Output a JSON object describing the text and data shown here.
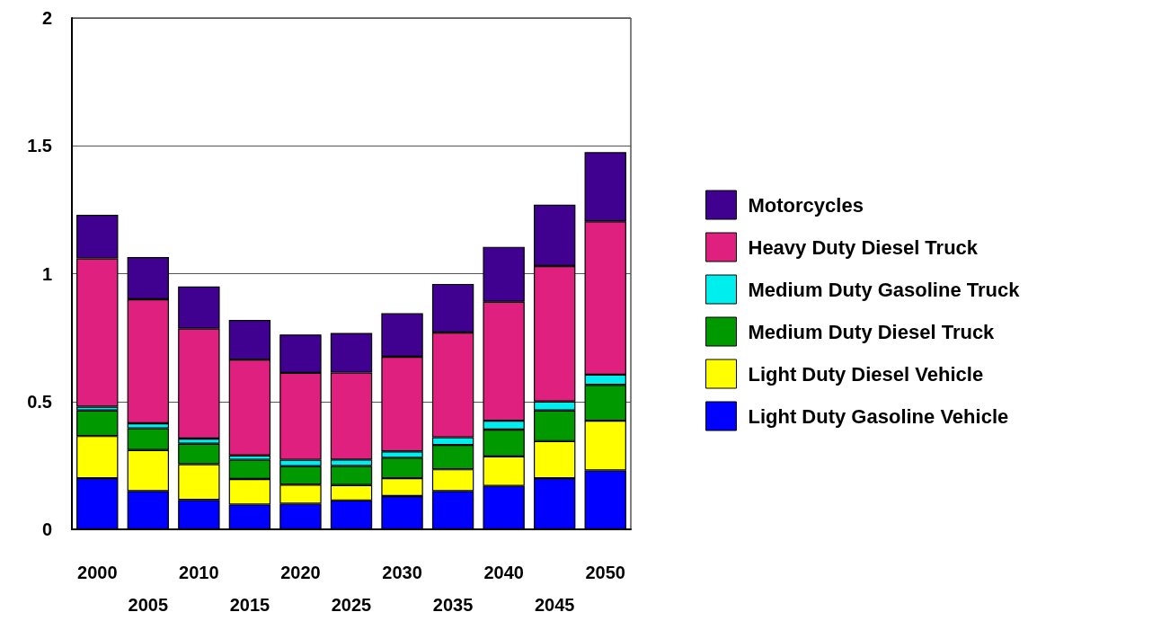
{
  "chart_data": {
    "type": "bar",
    "stacked": true,
    "categories": [
      "2000",
      "2005",
      "2010",
      "2015",
      "2020",
      "2025",
      "2030",
      "2035",
      "2040",
      "2045",
      "2050"
    ],
    "series": [
      {
        "name": "Light Duty Gasoline Vehicle",
        "color": "#0000ff",
        "values": [
          0.2,
          0.15,
          0.115,
          0.097,
          0.1,
          0.113,
          0.13,
          0.15,
          0.17,
          0.2,
          0.23
        ]
      },
      {
        "name": "Light Duty Diesel Vehicle",
        "color": "#ffff00",
        "values": [
          0.165,
          0.16,
          0.14,
          0.1,
          0.075,
          0.06,
          0.07,
          0.085,
          0.115,
          0.145,
          0.195
        ]
      },
      {
        "name": "Medium Duty Diesel Truck",
        "color": "#009900",
        "values": [
          0.1,
          0.085,
          0.08,
          0.075,
          0.072,
          0.075,
          0.08,
          0.095,
          0.105,
          0.12,
          0.14
        ]
      },
      {
        "name": "Medium Duty Gasoline Truck",
        "color": "#00eeee",
        "values": [
          0.015,
          0.02,
          0.02,
          0.017,
          0.025,
          0.025,
          0.025,
          0.03,
          0.035,
          0.035,
          0.04
        ]
      },
      {
        "name": "Heavy Duty Diesel Truck",
        "color": "#e0207f",
        "values": [
          0.58,
          0.485,
          0.43,
          0.375,
          0.34,
          0.34,
          0.37,
          0.41,
          0.465,
          0.53,
          0.6
        ]
      },
      {
        "name": "Motorcycles",
        "color": "#400090",
        "values": [
          0.17,
          0.165,
          0.165,
          0.155,
          0.15,
          0.155,
          0.17,
          0.19,
          0.215,
          0.24,
          0.27
        ]
      }
    ],
    "ylim": [
      0,
      2
    ],
    "yticks": [
      0,
      0.5,
      1,
      1.5,
      2
    ],
    "grid": "y",
    "legend": "right"
  }
}
